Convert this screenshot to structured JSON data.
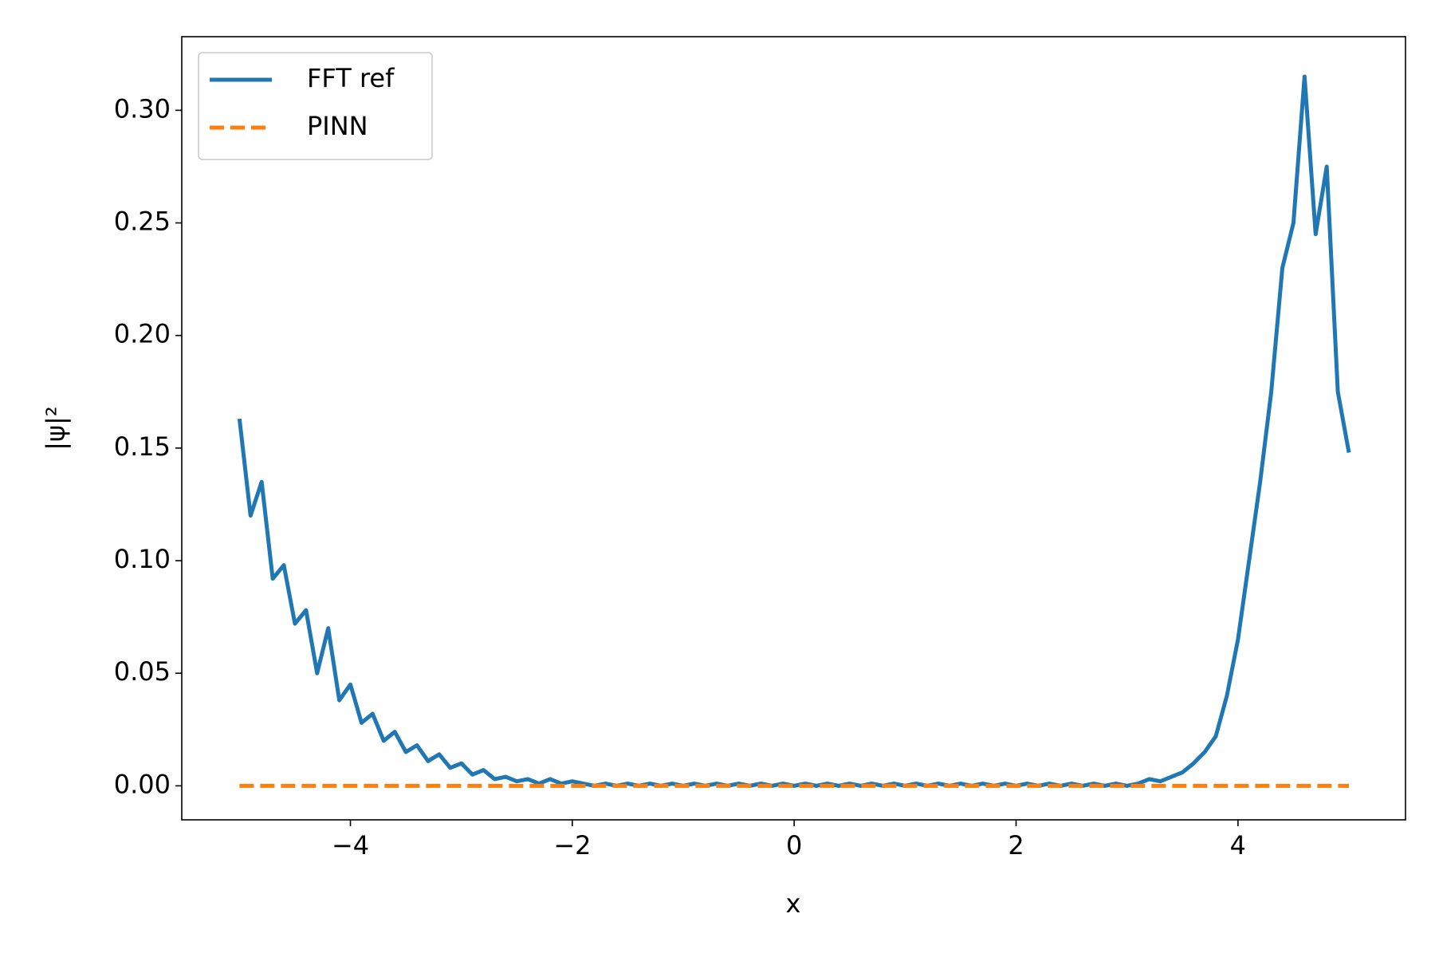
{
  "chart_data": {
    "type": "line",
    "xlabel": "x",
    "ylabel": "|ψ|²",
    "x": [
      -5,
      -4.9,
      -4.8,
      -4.7,
      -4.6,
      -4.5,
      -4.4,
      -4.3,
      -4.2,
      -4.1,
      -4,
      -3.9,
      -3.8,
      -3.7,
      -3.6,
      -3.5,
      -3.4,
      -3.3,
      -3.2,
      -3.1,
      -3,
      -2.9,
      -2.8,
      -2.7,
      -2.6,
      -2.5,
      -2.4,
      -2.3,
      -2.2,
      -2.1,
      -2,
      -1.9,
      -1.8,
      -1.7,
      -1.6,
      -1.5,
      -1.4,
      -1.3,
      -1.2,
      -1.1,
      -1,
      -0.9,
      -0.8,
      -0.7,
      -0.6,
      -0.5,
      -0.4,
      -0.3,
      -0.2,
      -0.1,
      0,
      0.1,
      0.2,
      0.3,
      0.4,
      0.5,
      0.6,
      0.7,
      0.8,
      0.9,
      1,
      1.1,
      1.2,
      1.3,
      1.4,
      1.5,
      1.6,
      1.7,
      1.8,
      1.9,
      2,
      2.1,
      2.2,
      2.3,
      2.4,
      2.5,
      2.6,
      2.7,
      2.8,
      2.9,
      3,
      3.1,
      3.2,
      3.3,
      3.4,
      3.5,
      3.6,
      3.7,
      3.8,
      3.9,
      4,
      4.1,
      4.2,
      4.3,
      4.4,
      4.5,
      4.6,
      4.7,
      4.8,
      4.9,
      5
    ],
    "series": [
      {
        "name": "FFT ref",
        "color": "#1f77b4",
        "dash": false,
        "values": [
          0.163,
          0.12,
          0.135,
          0.092,
          0.098,
          0.072,
          0.078,
          0.05,
          0.07,
          0.038,
          0.045,
          0.028,
          0.032,
          0.02,
          0.024,
          0.015,
          0.018,
          0.011,
          0.014,
          0.008,
          0.01,
          0.005,
          0.007,
          0.003,
          0.004,
          0.002,
          0.003,
          0.001,
          0.003,
          0.001,
          0.002,
          0.001,
          0,
          0.001,
          0,
          0.001,
          0,
          0.001,
          0,
          0.001,
          0,
          0.001,
          0,
          0.001,
          0,
          0.001,
          0,
          0.001,
          0,
          0.001,
          0,
          0.001,
          0,
          0.001,
          0,
          0.001,
          0,
          0.001,
          0,
          0.001,
          0,
          0.001,
          0,
          0.001,
          0,
          0.001,
          0,
          0.001,
          0,
          0.001,
          0,
          0.001,
          0,
          0.001,
          0,
          0.001,
          0,
          0.001,
          0,
          0.001,
          0,
          0.001,
          0.003,
          0.002,
          0.004,
          0.006,
          0.01,
          0.015,
          0.022,
          0.04,
          0.065,
          0.1,
          0.135,
          0.175,
          0.23,
          0.25,
          0.315,
          0.245,
          0.275,
          0.175,
          0.148
        ]
      },
      {
        "name": "PINN",
        "color": "#ff7f0e",
        "dash": true,
        "values": [
          0,
          0,
          0,
          0,
          0,
          0,
          0,
          0,
          0,
          0,
          0,
          0,
          0,
          0,
          0,
          0,
          0,
          0,
          0,
          0,
          0,
          0,
          0,
          0,
          0,
          0,
          0,
          0,
          0,
          0,
          0,
          0,
          0,
          0,
          0,
          0,
          0,
          0,
          0,
          0,
          0,
          0,
          0,
          0,
          0,
          0,
          0,
          0,
          0,
          0,
          0,
          0,
          0,
          0,
          0,
          0,
          0,
          0,
          0,
          0,
          0,
          0,
          0,
          0,
          0,
          0,
          0,
          0,
          0,
          0,
          0,
          0,
          0,
          0,
          0,
          0,
          0,
          0,
          0,
          0,
          0,
          0,
          0,
          0,
          0,
          0,
          0,
          0,
          0,
          0,
          0,
          0,
          0,
          0,
          0,
          0,
          0,
          0,
          0,
          0,
          0
        ]
      }
    ],
    "xlim": [
      -5.52,
      5.51
    ],
    "ylim": [
      -0.0151,
      0.3327
    ],
    "xticks": [
      {
        "value": -4,
        "label": "−4"
      },
      {
        "value": -2,
        "label": "−2"
      },
      0,
      2,
      4
    ],
    "yticks": [
      {
        "value": 0,
        "label": "0.00"
      },
      {
        "value": 0.05,
        "label": "0.05"
      },
      {
        "value": 0.1,
        "label": "0.10"
      },
      {
        "value": 0.15,
        "label": "0.15"
      },
      {
        "value": 0.2,
        "label": "0.20"
      },
      {
        "value": 0.25,
        "label": "0.25"
      },
      {
        "value": 0.3,
        "label": "0.30"
      }
    ],
    "grid": false,
    "legend": "upper left"
  }
}
